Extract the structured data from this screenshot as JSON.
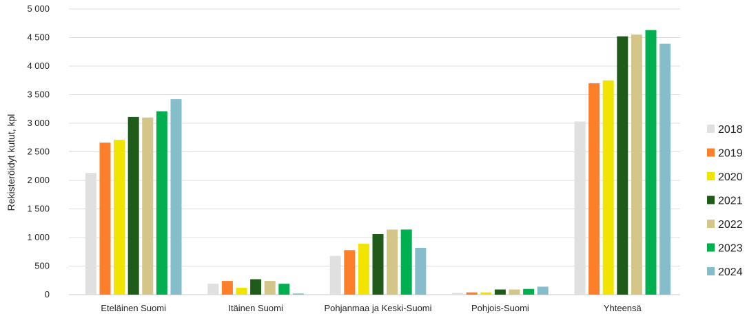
{
  "chart_data": {
    "type": "bar",
    "ylabel": "Rekisteröidyt kutut, kpl",
    "xlabel": "",
    "ylim": [
      0,
      5000
    ],
    "yticks": [
      {
        "value": 0,
        "label": "0"
      },
      {
        "value": 500,
        "label": "500"
      },
      {
        "value": 1000,
        "label": "1 000"
      },
      {
        "value": 1500,
        "label": "1 500"
      },
      {
        "value": 2000,
        "label": "2 000"
      },
      {
        "value": 2500,
        "label": "2 500"
      },
      {
        "value": 3000,
        "label": "3 000"
      },
      {
        "value": 3500,
        "label": "3 500"
      },
      {
        "value": 4000,
        "label": "4 000"
      },
      {
        "value": 4500,
        "label": "4 500"
      },
      {
        "value": 5000,
        "label": "5 000"
      }
    ],
    "grid": true,
    "legend_position": "right",
    "categories": [
      "Eteläinen Suomi",
      "Itäinen Suomi",
      "Pohjanmaa ja Keski-Suomi",
      "Pohjois-Suomi",
      "Yhteensä"
    ],
    "series": [
      {
        "name": "2018",
        "color": "#e0e0e0",
        "values": [
          2130,
          190,
          680,
          30,
          3030
        ]
      },
      {
        "name": "2019",
        "color": "#fd7f2a",
        "values": [
          2660,
          240,
          780,
          40,
          3700
        ]
      },
      {
        "name": "2020",
        "color": "#f0e400",
        "values": [
          2710,
          120,
          890,
          40,
          3750
        ]
      },
      {
        "name": "2021",
        "color": "#1f5c1a",
        "values": [
          3110,
          270,
          1060,
          90,
          4520
        ]
      },
      {
        "name": "2022",
        "color": "#d4c688",
        "values": [
          3100,
          240,
          1140,
          90,
          4550
        ]
      },
      {
        "name": "2023",
        "color": "#00b050",
        "values": [
          3210,
          190,
          1140,
          100,
          4630
        ]
      },
      {
        "name": "2024",
        "color": "#86bdca",
        "values": [
          3420,
          20,
          820,
          140,
          4390
        ]
      }
    ]
  }
}
